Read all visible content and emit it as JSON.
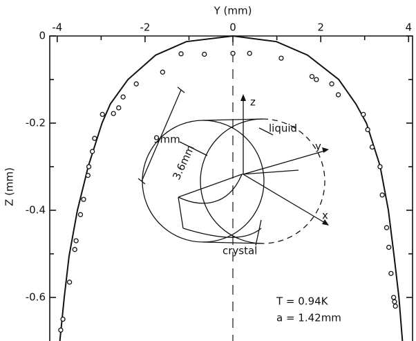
{
  "chart_data": {
    "type": "scatter",
    "xlabel": "Y (mm)",
    "ylabel": "Z (mm)",
    "xlim": [
      -4.17,
      4.09
    ],
    "ylim": [
      -0.7,
      0
    ],
    "xticks": [
      -4,
      -2,
      0,
      2,
      4
    ],
    "xticks_minor": [
      -3,
      -1,
      1,
      3
    ],
    "yticks": [
      0,
      -0.2,
      -0.4,
      -0.6
    ],
    "yticks_minor": [
      -0.1,
      -0.3,
      -0.5
    ],
    "color": "#111111",
    "series": [
      {
        "x": [
          -3.92,
          -3.87,
          -3.72,
          -3.6,
          -3.57,
          -3.47,
          -3.4,
          -3.3,
          -3.28,
          -3.2,
          -3.15,
          -2.97,
          -2.72,
          -2.6,
          -2.5,
          -2.2,
          -1.6,
          -1.18,
          -0.65,
          0,
          0.38,
          1.1,
          1.8,
          1.9,
          2.25,
          2.4,
          2.97,
          3.07,
          3.17,
          3.35,
          3.4,
          3.5,
          3.55,
          3.6,
          3.66,
          3.68,
          3.7
        ],
        "values": [
          -0.675,
          -0.65,
          -0.565,
          -0.49,
          -0.47,
          -0.41,
          -0.375,
          -0.32,
          -0.3,
          -0.265,
          -0.235,
          -0.18,
          -0.178,
          -0.165,
          -0.14,
          -0.11,
          -0.083,
          -0.041,
          -0.042,
          -0.04,
          -0.04,
          -0.051,
          -0.093,
          -0.1,
          -0.11,
          -0.135,
          -0.18,
          -0.215,
          -0.255,
          -0.3,
          -0.365,
          -0.44,
          -0.485,
          -0.545,
          -0.6,
          -0.61,
          -0.62
        ]
      }
    ],
    "curve": {
      "x": [
        -3.94,
        -3.84,
        -3.73,
        -3.54,
        -3.29,
        -2.98,
        -2.79,
        -2.39,
        -1.76,
        -1.06,
        0,
        0.99,
        1.7,
        2.41,
        2.8,
        3.04,
        3.35,
        3.54,
        3.67,
        3.78,
        3.86
      ],
      "values": [
        -0.7,
        -0.6,
        -0.505,
        -0.4,
        -0.298,
        -0.2,
        -0.156,
        -0.1,
        -0.044,
        -0.013,
        0,
        -0.013,
        -0.044,
        -0.1,
        -0.156,
        -0.2,
        -0.298,
        -0.4,
        -0.505,
        -0.6,
        -0.7
      ]
    },
    "annotations": {
      "temperature": "T = 0.94K",
      "radius": "a = 1.42mm",
      "length": "9mm",
      "diameter": "3.6mm",
      "liquid": "liquid",
      "crystal": "crystal",
      "z_axis": "z",
      "y_axis": "y",
      "x_axis": "x"
    }
  }
}
